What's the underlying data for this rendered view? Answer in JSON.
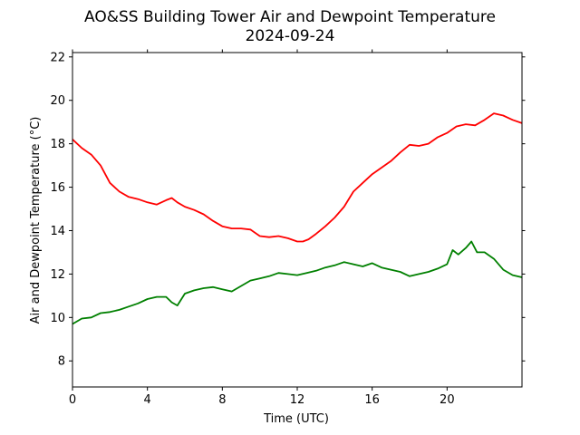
{
  "chart_data": {
    "type": "line",
    "title": "AO&SS Building Tower Air and Dewpoint Temperature",
    "subtitle": "2024-09-24",
    "xlabel": "Time (UTC)",
    "ylabel": "Air and Dewpoint Temperature (°C)",
    "xlim": [
      0,
      24
    ],
    "ylim": [
      6.8,
      22.2
    ],
    "xticks": [
      0,
      4,
      8,
      12,
      16,
      20
    ],
    "yticks": [
      8,
      10,
      12,
      14,
      16,
      18,
      20,
      22
    ],
    "grid": false,
    "legend": "none",
    "series": [
      {
        "color": "#ff0000",
        "x": [
          0,
          0.5,
          1.0,
          1.5,
          2.0,
          2.5,
          3.0,
          3.5,
          4.0,
          4.5,
          5.0,
          5.3,
          5.6,
          6.0,
          6.5,
          7.0,
          7.5,
          8.0,
          8.5,
          9.0,
          9.5,
          10.0,
          10.5,
          11.0,
          11.5,
          12.0,
          12.3,
          12.6,
          13.0,
          13.5,
          14.0,
          14.5,
          15.0,
          15.5,
          16.0,
          16.5,
          17.0,
          17.5,
          18.0,
          18.5,
          19.0,
          19.5,
          20.0,
          20.5,
          21.0,
          21.5,
          22.0,
          22.5,
          23.0,
          23.5,
          24.0
        ],
        "y": [
          18.2,
          17.8,
          17.5,
          17.0,
          16.2,
          15.8,
          15.55,
          15.45,
          15.3,
          15.2,
          15.4,
          15.5,
          15.3,
          15.1,
          14.95,
          14.75,
          14.45,
          14.2,
          14.1,
          14.1,
          14.05,
          13.75,
          13.7,
          13.75,
          13.65,
          13.5,
          13.5,
          13.6,
          13.85,
          14.2,
          14.6,
          15.1,
          15.8,
          16.2,
          16.6,
          16.9,
          17.2,
          17.6,
          17.95,
          17.9,
          18.0,
          18.3,
          18.5,
          18.8,
          18.9,
          18.85,
          19.1,
          19.4,
          19.3,
          19.1,
          18.95
        ]
      },
      {
        "color": "#008000",
        "x": [
          0,
          0.5,
          1.0,
          1.5,
          2.0,
          2.5,
          3.0,
          3.5,
          4.0,
          4.5,
          5.0,
          5.3,
          5.6,
          6.0,
          6.5,
          7.0,
          7.5,
          8.0,
          8.5,
          9.0,
          9.5,
          10.0,
          10.5,
          11.0,
          11.5,
          12.0,
          12.5,
          13.0,
          13.5,
          14.0,
          14.5,
          15.0,
          15.5,
          16.0,
          16.5,
          17.0,
          17.5,
          18.0,
          18.5,
          19.0,
          19.5,
          20.0,
          20.3,
          20.6,
          21.0,
          21.3,
          21.6,
          22.0,
          22.5,
          23.0,
          23.5,
          24.0
        ],
        "y": [
          9.7,
          9.95,
          10.0,
          10.2,
          10.25,
          10.35,
          10.5,
          10.65,
          10.85,
          10.95,
          10.95,
          10.7,
          10.55,
          11.1,
          11.25,
          11.35,
          11.4,
          11.3,
          11.2,
          11.45,
          11.7,
          11.8,
          11.9,
          12.05,
          12.0,
          11.95,
          12.05,
          12.15,
          12.3,
          12.4,
          12.55,
          12.45,
          12.35,
          12.5,
          12.3,
          12.2,
          12.1,
          11.9,
          12.0,
          12.1,
          12.25,
          12.45,
          13.1,
          12.9,
          13.2,
          13.5,
          13.0,
          13.0,
          12.7,
          12.2,
          11.95,
          11.85
        ]
      }
    ]
  }
}
